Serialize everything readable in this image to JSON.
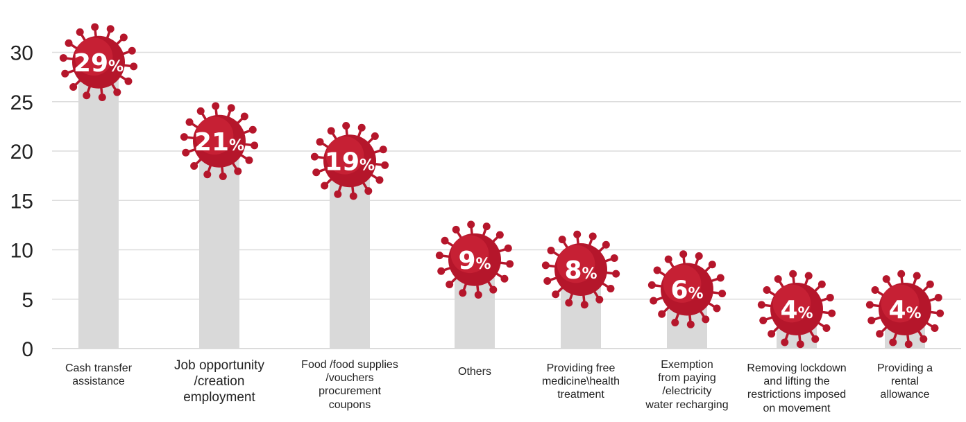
{
  "chart_data": {
    "type": "bar",
    "title": "",
    "xlabel": "",
    "ylabel": "",
    "ylim": [
      0,
      33
    ],
    "yticks": [
      0,
      5,
      10,
      15,
      20,
      25,
      30
    ],
    "grid": true,
    "categories": [
      [
        "Cash transfer",
        "assistance"
      ],
      [
        "Job opportunity",
        "/creation",
        "employment"
      ],
      [
        "Food /food supplies",
        "/vouchers",
        "procurement",
        "coupons"
      ],
      [
        "Others"
      ],
      [
        "Providing free",
        "medicine\\health",
        "treatment"
      ],
      [
        "Exemption",
        "from paying",
        "/electricity",
        "water recharging"
      ],
      [
        "Removing lockdown",
        "and lifting the",
        "restrictions imposed",
        "on movement"
      ],
      [
        "Providing a",
        "rental",
        "allowance"
      ]
    ],
    "values": [
      29,
      21,
      19,
      9,
      8,
      6,
      4,
      4
    ],
    "data_labels": [
      "29",
      "21",
      "19",
      "9",
      "8",
      "6",
      "4",
      "4"
    ],
    "percent_sign": "%",
    "colors": {
      "bar": "#d9d9d9",
      "virus": "#b5162b",
      "virus_highlight": "#d42a3c",
      "grid": "#dcdcdc",
      "text": "#222222"
    }
  }
}
